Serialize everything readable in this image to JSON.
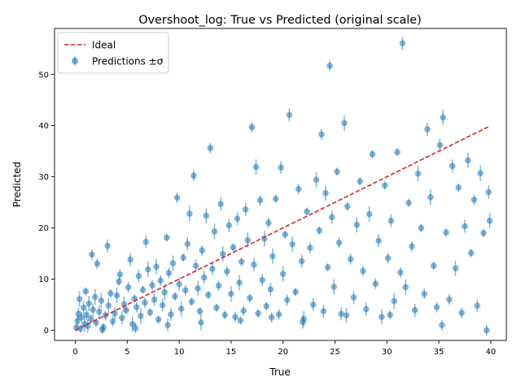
{
  "chart_data": {
    "type": "scatter",
    "title": "Overshoot_log: True vs Predicted (original scale)",
    "xlabel": "True",
    "ylabel": "Predicted",
    "xlim": [
      -2,
      41.5
    ],
    "ylim": [
      -2,
      59
    ],
    "xticks": [
      0,
      5,
      10,
      15,
      20,
      25,
      30,
      35,
      40
    ],
    "yticks": [
      0,
      10,
      20,
      30,
      40,
      50
    ],
    "grid": false,
    "legend_position": "top-left",
    "colors": {
      "ideal": "#d62728",
      "points": "#1f77b4"
    },
    "series": [
      {
        "name": "Ideal",
        "kind": "dashed-line",
        "x": [
          0,
          39.9
        ],
        "y": [
          0,
          39.9
        ]
      },
      {
        "name": "Predictions ±σ",
        "kind": "errorbar-scatter",
        "points": [
          [
            0.1,
            0.5
          ],
          [
            0.2,
            1.8
          ],
          [
            0.3,
            3.2
          ],
          [
            0.4,
            6.1
          ],
          [
            0.5,
            0.3
          ],
          [
            0.6,
            2.5
          ],
          [
            0.8,
            4.4
          ],
          [
            0.9,
            1.2
          ],
          [
            1.0,
            7.6
          ],
          [
            1.1,
            3.0
          ],
          [
            1.2,
            0.8
          ],
          [
            1.3,
            5.2
          ],
          [
            1.5,
            2.2
          ],
          [
            1.6,
            14.8
          ],
          [
            1.7,
            4.0
          ],
          [
            1.9,
            6.5
          ],
          [
            2.0,
            1.5
          ],
          [
            2.1,
            13.0
          ],
          [
            2.3,
            3.6
          ],
          [
            2.5,
            5.8
          ],
          [
            2.7,
            0.6
          ],
          [
            2.9,
            2.9
          ],
          [
            3.1,
            16.5
          ],
          [
            3.2,
            4.8
          ],
          [
            3.4,
            7.2
          ],
          [
            3.6,
            1.7
          ],
          [
            3.8,
            3.3
          ],
          [
            4.0,
            6.8
          ],
          [
            4.2,
            9.5
          ],
          [
            4.3,
            10.9
          ],
          [
            4.5,
            2.4
          ],
          [
            4.7,
            5.1
          ],
          [
            4.9,
            3.9
          ],
          [
            5.1,
            8.4
          ],
          [
            5.3,
            13.8
          ],
          [
            5.5,
            1.2
          ],
          [
            5.7,
            6.2
          ],
          [
            5.9,
            4.5
          ],
          [
            6.1,
            10.6
          ],
          [
            6.3,
            2.8
          ],
          [
            6.5,
            7.9
          ],
          [
            6.7,
            5.4
          ],
          [
            6.8,
            17.3
          ],
          [
            7.0,
            11.9
          ],
          [
            7.2,
            3.5
          ],
          [
            7.4,
            8.8
          ],
          [
            7.6,
            6.0
          ],
          [
            7.8,
            12.4
          ],
          [
            8.0,
            2.1
          ],
          [
            8.2,
            9.7
          ],
          [
            8.4,
            4.9
          ],
          [
            8.6,
            7.4
          ],
          [
            8.8,
            18.1
          ],
          [
            9.0,
            11.2
          ],
          [
            9.2,
            3.1
          ],
          [
            9.4,
            13.1
          ],
          [
            9.6,
            6.6
          ],
          [
            9.8,
            25.9
          ],
          [
            10.0,
            9.0
          ],
          [
            10.2,
            4.2
          ],
          [
            10.4,
            14.2
          ],
          [
            10.6,
            7.8
          ],
          [
            10.8,
            16.9
          ],
          [
            11.0,
            22.8
          ],
          [
            11.2,
            5.6
          ],
          [
            11.4,
            30.2
          ],
          [
            11.6,
            12.6
          ],
          [
            11.8,
            8.2
          ],
          [
            12.0,
            3.7
          ],
          [
            12.2,
            15.6
          ],
          [
            12.4,
            10.3
          ],
          [
            12.6,
            22.4
          ],
          [
            12.8,
            6.9
          ],
          [
            13.0,
            35.6
          ],
          [
            13.2,
            12.0
          ],
          [
            13.4,
            19.3
          ],
          [
            13.6,
            4.4
          ],
          [
            13.8,
            8.7
          ],
          [
            14.0,
            24.7
          ],
          [
            14.2,
            14.9
          ],
          [
            14.4,
            3.0
          ],
          [
            14.6,
            11.5
          ],
          [
            14.8,
            20.5
          ],
          [
            15.0,
            7.1
          ],
          [
            15.2,
            16.2
          ],
          [
            15.4,
            2.6
          ],
          [
            15.6,
            21.8
          ],
          [
            15.8,
            9.3
          ],
          [
            16.0,
            13.4
          ],
          [
            16.2,
            3.8
          ],
          [
            16.4,
            23.6
          ],
          [
            16.6,
            17.6
          ],
          [
            16.8,
            6.3
          ],
          [
            17.0,
            39.7
          ],
          [
            17.2,
            12.8
          ],
          [
            17.4,
            31.9
          ],
          [
            17.6,
            3.3
          ],
          [
            17.8,
            25.4
          ],
          [
            18.0,
            9.8
          ],
          [
            18.2,
            17.9
          ],
          [
            18.4,
            4.7
          ],
          [
            18.6,
            21.0
          ],
          [
            18.8,
            8.0
          ],
          [
            19.0,
            14.5
          ],
          [
            19.3,
            25.7
          ],
          [
            19.6,
            3.1
          ],
          [
            19.8,
            31.8
          ],
          [
            20.0,
            11.0
          ],
          [
            20.2,
            18.7
          ],
          [
            20.4,
            5.9
          ],
          [
            20.6,
            42.1
          ],
          [
            20.9,
            16.8
          ],
          [
            21.2,
            7.5
          ],
          [
            21.5,
            27.6
          ],
          [
            21.8,
            13.5
          ],
          [
            22.0,
            2.2
          ],
          [
            22.3,
            23.2
          ],
          [
            22.6,
            16.1
          ],
          [
            22.9,
            5.0
          ],
          [
            23.2,
            29.4
          ],
          [
            23.5,
            19.5
          ],
          [
            23.7,
            38.3
          ],
          [
            23.9,
            3.7
          ],
          [
            24.1,
            26.8
          ],
          [
            24.3,
            12.3
          ],
          [
            24.5,
            51.7
          ],
          [
            24.7,
            22.1
          ],
          [
            24.9,
            8.5
          ],
          [
            25.2,
            31.0
          ],
          [
            25.4,
            17.1
          ],
          [
            25.6,
            3.2
          ],
          [
            25.9,
            40.5
          ],
          [
            26.2,
            24.2
          ],
          [
            26.5,
            13.9
          ],
          [
            26.8,
            6.4
          ],
          [
            27.1,
            20.6
          ],
          [
            27.4,
            29.1
          ],
          [
            27.7,
            11.6
          ],
          [
            28.0,
            4.1
          ],
          [
            28.3,
            22.7
          ],
          [
            28.6,
            34.4
          ],
          [
            28.9,
            9.1
          ],
          [
            29.2,
            17.5
          ],
          [
            29.5,
            2.6
          ],
          [
            29.8,
            28.3
          ],
          [
            30.1,
            14.1
          ],
          [
            30.4,
            21.4
          ],
          [
            30.7,
            5.7
          ],
          [
            31.0,
            34.8
          ],
          [
            31.3,
            11.3
          ],
          [
            31.5,
            56.1
          ],
          [
            31.8,
            8.4
          ],
          [
            32.1,
            24.9
          ],
          [
            32.4,
            16.4
          ],
          [
            32.7,
            3.9
          ],
          [
            33.0,
            30.6
          ],
          [
            33.3,
            20.0
          ],
          [
            33.6,
            7.1
          ],
          [
            33.9,
            39.3
          ],
          [
            34.2,
            26.0
          ],
          [
            34.5,
            12.6
          ],
          [
            34.8,
            4.5
          ],
          [
            35.1,
            36.2
          ],
          [
            35.4,
            41.6
          ],
          [
            35.7,
            19.1
          ],
          [
            36.0,
            6.0
          ],
          [
            36.3,
            32.1
          ],
          [
            36.6,
            12.1
          ],
          [
            36.9,
            27.9
          ],
          [
            37.2,
            3.4
          ],
          [
            37.5,
            20.3
          ],
          [
            37.8,
            33.2
          ],
          [
            38.1,
            15.1
          ],
          [
            38.4,
            25.5
          ],
          [
            38.7,
            4.8
          ],
          [
            39.0,
            30.7
          ],
          [
            39.3,
            19.0
          ],
          [
            39.6,
            0.0
          ],
          [
            39.8,
            27.0
          ],
          [
            39.9,
            21.4
          ],
          [
            2.6,
            0.1
          ],
          [
            5.8,
            0.4
          ],
          [
            8.9,
            1.0
          ],
          [
            12.1,
            1.5
          ],
          [
            15.9,
            1.9
          ],
          [
            18.9,
            2.5
          ],
          [
            21.9,
            1.6
          ],
          [
            26.1,
            2.9
          ],
          [
            30.3,
            3.0
          ],
          [
            35.3,
            1.0
          ]
        ]
      }
    ]
  }
}
